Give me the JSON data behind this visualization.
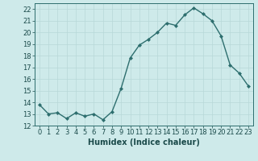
{
  "x": [
    0,
    1,
    2,
    3,
    4,
    5,
    6,
    7,
    8,
    9,
    10,
    11,
    12,
    13,
    14,
    15,
    16,
    17,
    18,
    19,
    20,
    21,
    22,
    23
  ],
  "y": [
    13.8,
    13.0,
    13.1,
    12.6,
    13.1,
    12.8,
    13.0,
    12.5,
    13.2,
    15.2,
    17.8,
    18.9,
    19.4,
    20.0,
    20.8,
    20.6,
    21.5,
    22.1,
    21.6,
    21.0,
    19.7,
    17.2,
    16.5,
    15.4
  ],
  "line_color": "#2d6e6e",
  "marker": "D",
  "marker_size": 2.0,
  "bg_color": "#ceeaea",
  "grid_color": "#b8d8d8",
  "xlabel": "Humidex (Indice chaleur)",
  "xlim": [
    -0.5,
    23.5
  ],
  "ylim": [
    12,
    22.5
  ],
  "yticks": [
    12,
    13,
    14,
    15,
    16,
    17,
    18,
    19,
    20,
    21,
    22
  ],
  "xticks": [
    0,
    1,
    2,
    3,
    4,
    5,
    6,
    7,
    8,
    9,
    10,
    11,
    12,
    13,
    14,
    15,
    16,
    17,
    18,
    19,
    20,
    21,
    22,
    23
  ],
  "xlabel_fontsize": 7,
  "tick_fontsize": 6,
  "line_width": 1.0
}
